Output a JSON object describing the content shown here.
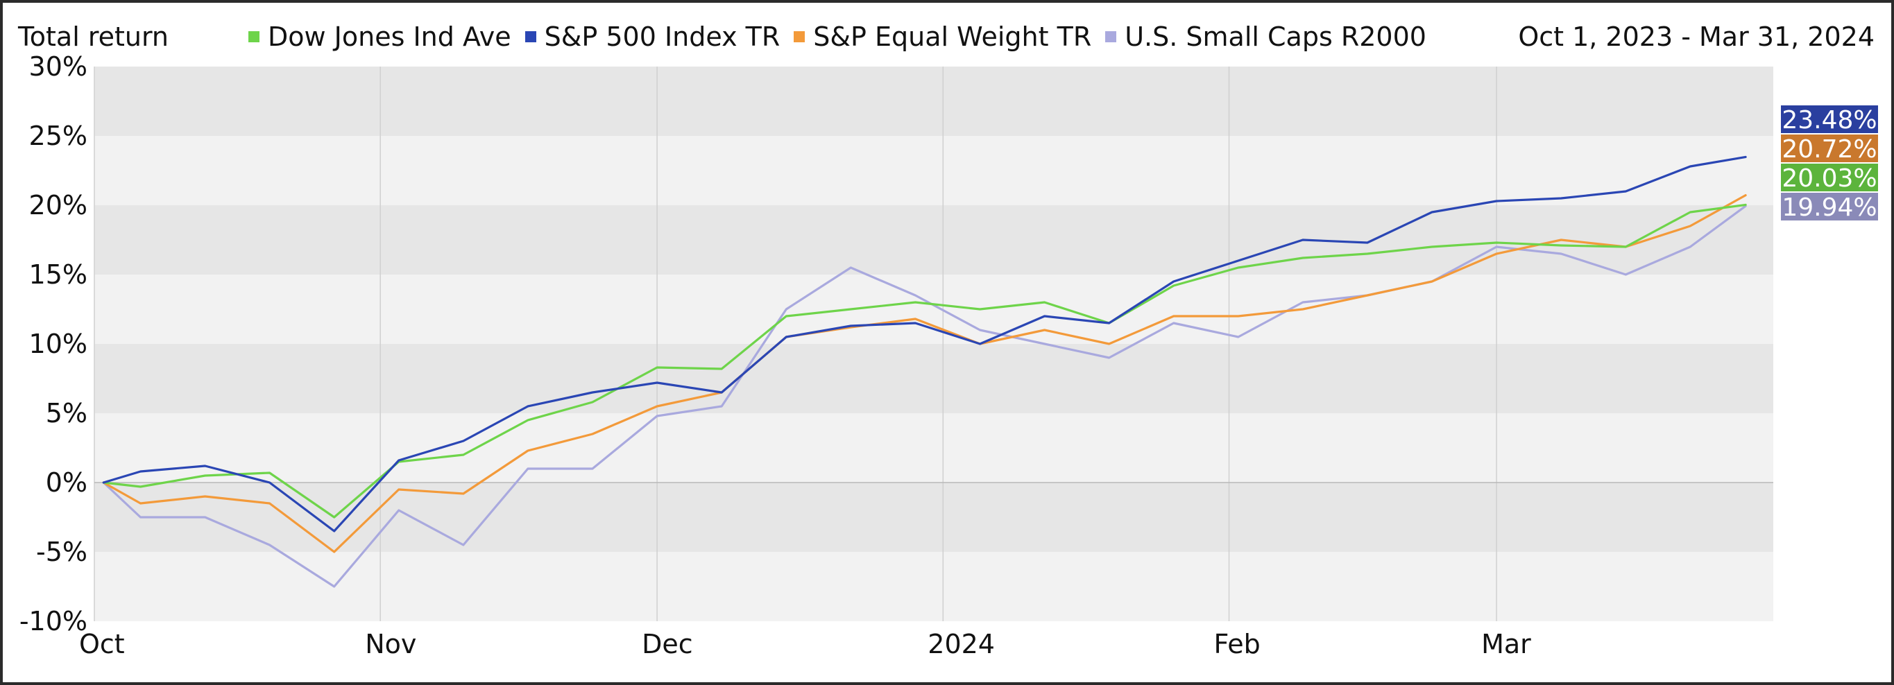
{
  "header": {
    "title": "Total return",
    "date_range": "Oct 1, 2023 - Mar 31, 2024"
  },
  "colors": {
    "dow": "#6ed44a",
    "sp500": "#2a46b4",
    "equal": "#f39a3a",
    "smallcaps": "#a9a9de",
    "band_dark": "#e6e6e6",
    "band_light": "#f2f2f2"
  },
  "chart_data": {
    "type": "line",
    "ylim": [
      -10,
      30
    ],
    "y_ticks": [
      -10,
      -5,
      0,
      5,
      10,
      15,
      20,
      25,
      30
    ],
    "y_tick_labels": [
      "-10%",
      "-5%",
      "0%",
      "5%",
      "10%",
      "15%",
      "20%",
      "25%",
      "30%"
    ],
    "x_ticks": [
      "Oct",
      "Nov",
      "Dec",
      "2024",
      "Feb",
      "Mar"
    ],
    "grid": true,
    "legend_position": "top",
    "x": [
      "2023-10-02",
      "2023-10-06",
      "2023-10-13",
      "2023-10-20",
      "2023-10-27",
      "2023-11-03",
      "2023-11-10",
      "2023-11-17",
      "2023-11-24",
      "2023-12-01",
      "2023-12-08",
      "2023-12-15",
      "2023-12-22",
      "2023-12-29",
      "2024-01-05",
      "2024-01-12",
      "2024-01-19",
      "2024-01-26",
      "2024-02-02",
      "2024-02-09",
      "2024-02-16",
      "2024-02-23",
      "2024-03-01",
      "2024-03-08",
      "2024-03-15",
      "2024-03-22",
      "2024-03-28"
    ],
    "series": [
      {
        "name": "Dow Jones Ind Ave",
        "color": "#6ed44a",
        "end_label": "20.03%",
        "values": [
          0.0,
          -0.3,
          0.5,
          0.7,
          -2.5,
          1.5,
          2.0,
          4.5,
          5.8,
          8.3,
          8.2,
          12.0,
          12.5,
          13.0,
          12.5,
          13.0,
          11.5,
          14.2,
          15.5,
          16.2,
          16.5,
          17.0,
          17.3,
          17.1,
          17.0,
          19.5,
          20.03
        ]
      },
      {
        "name": "S&P 500 Index TR",
        "color": "#2a46b4",
        "end_label": "23.48%",
        "values": [
          0.0,
          0.8,
          1.2,
          0.0,
          -3.5,
          1.6,
          3.0,
          5.5,
          6.5,
          7.2,
          6.5,
          10.5,
          11.3,
          11.5,
          10.0,
          12.0,
          11.5,
          14.5,
          16.0,
          17.5,
          17.3,
          19.5,
          20.3,
          20.5,
          21.0,
          22.8,
          23.48
        ]
      },
      {
        "name": "S&P Equal Weight TR",
        "color": "#f39a3a",
        "end_label": "20.72%",
        "values": [
          0.0,
          -1.5,
          -1.0,
          -1.5,
          -5.0,
          -0.5,
          -0.8,
          2.3,
          3.5,
          5.5,
          6.5,
          10.5,
          11.2,
          11.8,
          10.0,
          11.0,
          10.0,
          12.0,
          12.0,
          12.5,
          13.5,
          14.5,
          16.5,
          17.5,
          17.0,
          18.5,
          20.72
        ]
      },
      {
        "name": "U.S. Small Caps R2000",
        "color": "#a9a9de",
        "end_label": "19.94%",
        "values": [
          0.0,
          -2.5,
          -2.5,
          -4.5,
          -7.5,
          -2.0,
          -4.5,
          1.0,
          1.0,
          4.8,
          5.5,
          12.5,
          15.5,
          13.5,
          11.0,
          10.0,
          9.0,
          11.5,
          10.5,
          13.0,
          13.5,
          14.5,
          17.0,
          16.5,
          15.0,
          17.0,
          19.94
        ]
      }
    ]
  }
}
